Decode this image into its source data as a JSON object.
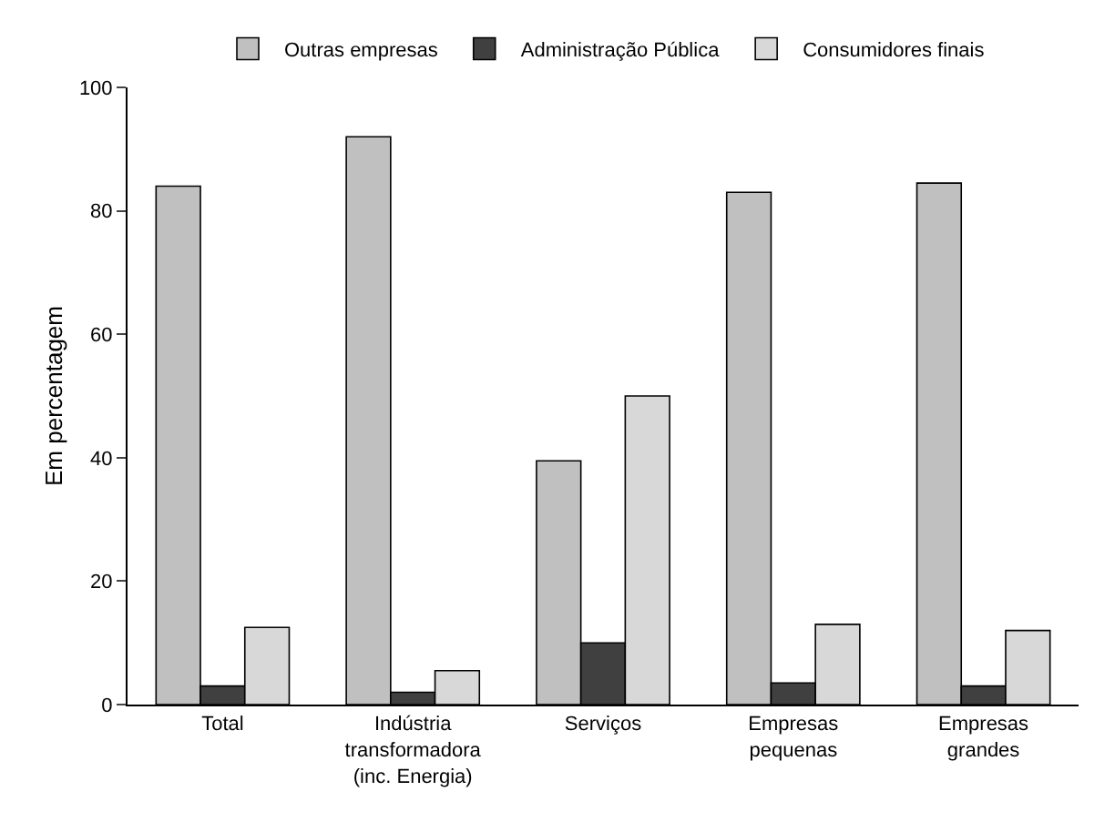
{
  "chart_data": {
    "type": "bar",
    "ylabel": "Em percentagem",
    "categories": [
      "Total",
      "Indústria transformadora (inc. Energia)",
      "Serviços",
      "Empresas pequenas",
      "Empresas grandes"
    ],
    "series": [
      {
        "name": "Outras empresas",
        "color": "#c0c0c0",
        "values": [
          84,
          92,
          39.5,
          83,
          84.5
        ]
      },
      {
        "name": "Administração Pública",
        "color": "#404040",
        "values": [
          3,
          2,
          10,
          3.5,
          3
        ]
      },
      {
        "name": "Consumidores finais",
        "color": "#d8d8d8",
        "values": [
          12.5,
          5.5,
          50,
          13,
          12
        ]
      }
    ],
    "ylim": [
      0,
      100
    ],
    "yticks": [
      0,
      20,
      40,
      60,
      80,
      100
    ],
    "grid": false,
    "legend": "top"
  }
}
